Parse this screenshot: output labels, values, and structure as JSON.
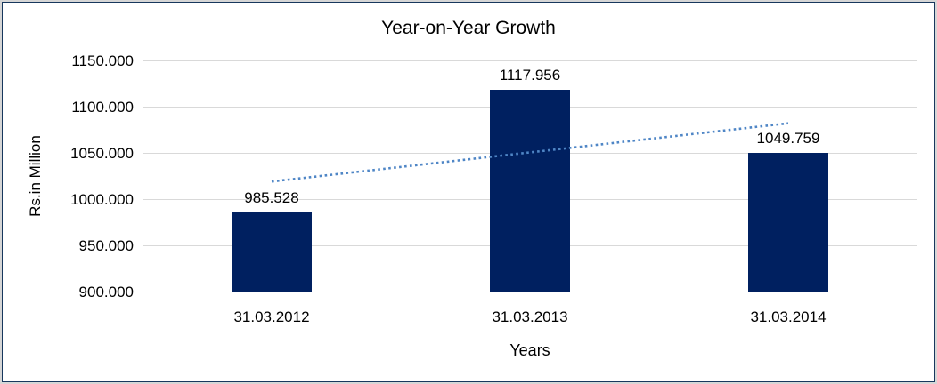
{
  "chart_data": {
    "type": "bar",
    "title": "Year-on-Year Growth",
    "xlabel": "Years",
    "ylabel": "Rs.in Million",
    "categories": [
      "31.03.2012",
      "31.03.2013",
      "31.03.2014"
    ],
    "values": [
      985.528,
      1117.956,
      1049.759
    ],
    "data_labels": [
      "985.528",
      "1117.956",
      "1049.759"
    ],
    "ylim": [
      900,
      1150
    ],
    "ytick_step": 50,
    "yticks": [
      {
        "label": "1150.000",
        "value": 1150
      },
      {
        "label": "1100.000",
        "value": 1100
      },
      {
        "label": "1050.000",
        "value": 1050
      },
      {
        "label": "1000.000",
        "value": 1000
      },
      {
        "label": "950.000",
        "value": 950
      },
      {
        "label": "900.000",
        "value": 900
      }
    ],
    "grid": true,
    "legend": "none",
    "trendline": {
      "type": "linear",
      "style": "dotted",
      "start_value": 1019,
      "end_value": 1082
    },
    "colors": {
      "bar": "#002060",
      "trendline": "#4f86c6",
      "gridline": "#d9d9d9",
      "text": "#000000",
      "frame_outer": "#d6d6d6",
      "frame_line": "#17375d"
    }
  }
}
